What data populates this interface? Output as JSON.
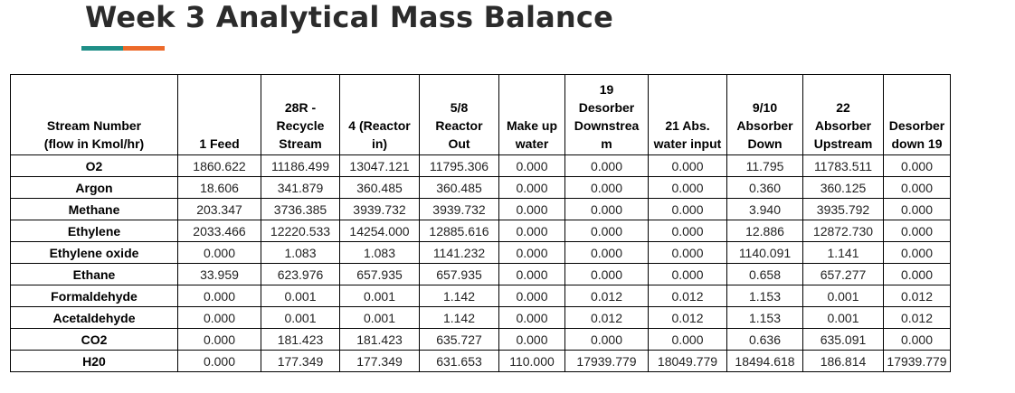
{
  "title": "Week 3 Analytical Mass Balance",
  "colors": {
    "accent_teal": "#1f8f87",
    "accent_orange": "#ec6a2a",
    "title_color": "#2b2b2b"
  },
  "table": {
    "headers": [
      [
        "Stream Number",
        "(flow in Kmol/hr)"
      ],
      [
        "1 Feed"
      ],
      [
        "28R -",
        "Recycle",
        "Stream"
      ],
      [
        "4 (Reactor",
        "in)"
      ],
      [
        "5/8",
        "Reactor",
        "Out"
      ],
      [
        "Make up",
        "water"
      ],
      [
        "19",
        "Desorber",
        "Downstrea",
        "m"
      ],
      [
        "21 Abs.",
        "water input"
      ],
      [
        "9/10",
        "Absorber",
        "Down"
      ],
      [
        "22",
        "Absorber",
        "Upstream"
      ],
      [
        "Desorber",
        "down 19"
      ]
    ],
    "rows": [
      [
        "O2",
        "1860.622",
        "11186.499",
        "13047.121",
        "11795.306",
        "0.000",
        "0.000",
        "0.000",
        "11.795",
        "11783.511",
        "0.000"
      ],
      [
        "Argon",
        "18.606",
        "341.879",
        "360.485",
        "360.485",
        "0.000",
        "0.000",
        "0.000",
        "0.360",
        "360.125",
        "0.000"
      ],
      [
        "Methane",
        "203.347",
        "3736.385",
        "3939.732",
        "3939.732",
        "0.000",
        "0.000",
        "0.000",
        "3.940",
        "3935.792",
        "0.000"
      ],
      [
        "Ethylene",
        "2033.466",
        "12220.533",
        "14254.000",
        "12885.616",
        "0.000",
        "0.000",
        "0.000",
        "12.886",
        "12872.730",
        "0.000"
      ],
      [
        "Ethylene oxide",
        "0.000",
        "1.083",
        "1.083",
        "1141.232",
        "0.000",
        "0.000",
        "0.000",
        "1140.091",
        "1.141",
        "0.000"
      ],
      [
        "Ethane",
        "33.959",
        "623.976",
        "657.935",
        "657.935",
        "0.000",
        "0.000",
        "0.000",
        "0.658",
        "657.277",
        "0.000"
      ],
      [
        "Formaldehyde",
        "0.000",
        "0.001",
        "0.001",
        "1.142",
        "0.000",
        "0.012",
        "0.012",
        "1.153",
        "0.001",
        "0.012"
      ],
      [
        "Acetaldehyde",
        "0.000",
        "0.001",
        "0.001",
        "1.142",
        "0.000",
        "0.012",
        "0.012",
        "1.153",
        "0.001",
        "0.012"
      ],
      [
        "CO2",
        "0.000",
        "181.423",
        "181.423",
        "635.727",
        "0.000",
        "0.000",
        "0.000",
        "0.636",
        "635.091",
        "0.000"
      ],
      [
        "H20",
        "0.000",
        "177.349",
        "177.349",
        "631.653",
        "110.000",
        "17939.779",
        "18049.779",
        "18494.618",
        "186.814",
        "17939.779"
      ]
    ]
  }
}
